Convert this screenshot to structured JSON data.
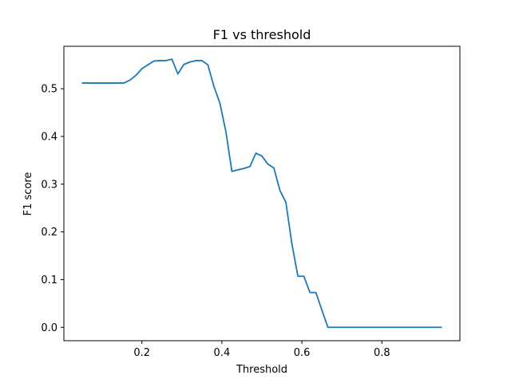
{
  "chart_data": {
    "type": "line",
    "title": "F1 vs threshold",
    "xlabel": "Threshold",
    "ylabel": "F1 score",
    "xlim": [
      0.005,
      0.995
    ],
    "ylim": [
      -0.028,
      0.589
    ],
    "xticks": [
      0.2,
      0.4,
      0.6,
      0.8
    ],
    "xtick_labels": [
      "0.2",
      "0.4",
      "0.6",
      "0.8"
    ],
    "yticks": [
      0.0,
      0.1,
      0.2,
      0.3,
      0.4,
      0.5
    ],
    "ytick_labels": [
      "0.0",
      "0.1",
      "0.2",
      "0.3",
      "0.4",
      "0.5"
    ],
    "grid": false,
    "legend": "none",
    "color": "#1f77b4",
    "series": [
      {
        "x": [
          0.05,
          0.065,
          0.08,
          0.095,
          0.11,
          0.125,
          0.14,
          0.155,
          0.17,
          0.185,
          0.2,
          0.215,
          0.23,
          0.245,
          0.26,
          0.275,
          0.29,
          0.305,
          0.32,
          0.335,
          0.35,
          0.365,
          0.38,
          0.395,
          0.41,
          0.425,
          0.44,
          0.455,
          0.47,
          0.485,
          0.5,
          0.515,
          0.53,
          0.545,
          0.56,
          0.575,
          0.59,
          0.605,
          0.62,
          0.635,
          0.65,
          0.665,
          0.68,
          0.695,
          0.71,
          0.725,
          0.74,
          0.755,
          0.77,
          0.785,
          0.8,
          0.815,
          0.83,
          0.845,
          0.86,
          0.875,
          0.89,
          0.905,
          0.92,
          0.935,
          0.95
        ],
        "y": [
          0.512,
          0.512,
          0.512,
          0.512,
          0.512,
          0.512,
          0.512,
          0.512,
          0.518,
          0.528,
          0.542,
          0.55,
          0.558,
          0.559,
          0.559,
          0.562,
          0.531,
          0.551,
          0.556,
          0.559,
          0.559,
          0.55,
          0.505,
          0.47,
          0.41,
          0.327,
          0.33,
          0.333,
          0.337,
          0.365,
          0.359,
          0.342,
          0.334,
          0.287,
          0.262,
          0.175,
          0.107,
          0.107,
          0.073,
          0.073,
          0.036,
          0.0,
          0.0,
          0.0,
          0.0,
          0.0,
          0.0,
          0.0,
          0.0,
          0.0,
          0.0,
          0.0,
          0.0,
          0.0,
          0.0,
          0.0,
          0.0,
          0.0,
          0.0,
          0.0,
          0.0
        ]
      }
    ]
  }
}
